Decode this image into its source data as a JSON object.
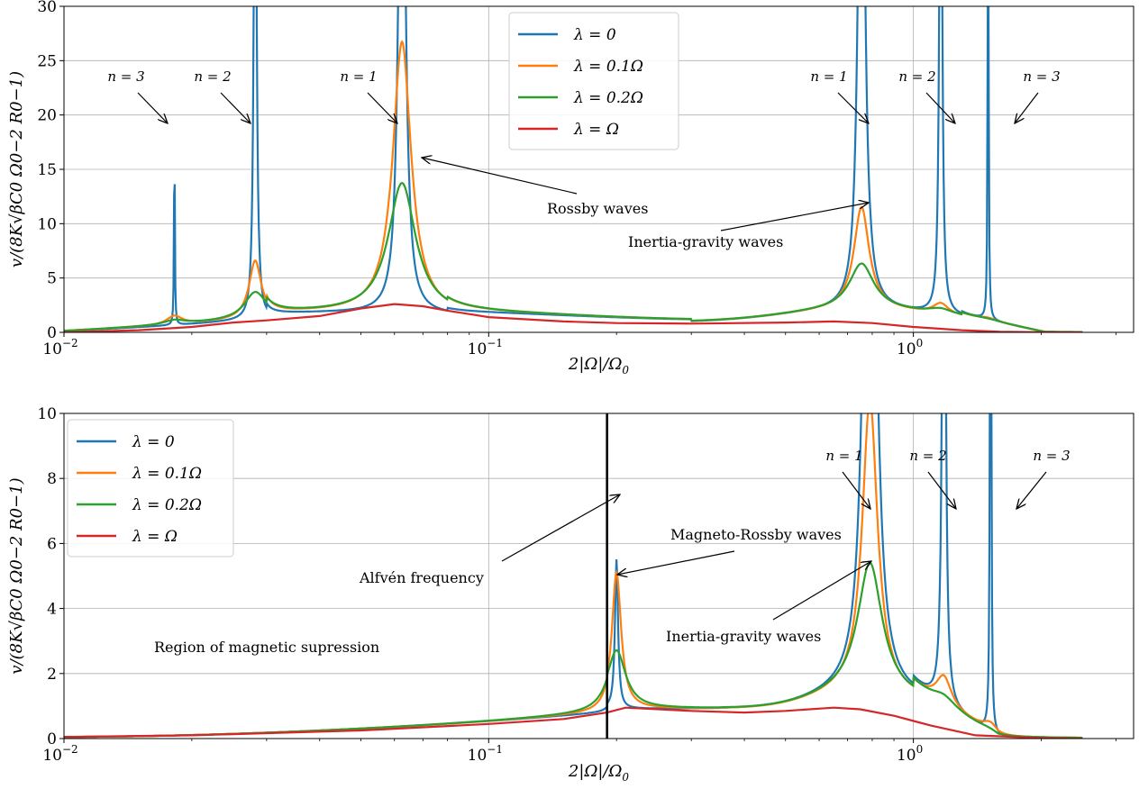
{
  "chart_data": [
    {
      "type": "line",
      "xscale": "log",
      "xlim": [
        0.01,
        3.3
      ],
      "ylim": [
        0,
        30
      ],
      "yticks": [
        0,
        5,
        10,
        15,
        20,
        25,
        30
      ],
      "xticks": [
        0.01,
        0.1,
        1
      ],
      "xtick_labels": [
        "10−2",
        "10−1",
        "100"
      ],
      "xtick_base": "10",
      "xtick_exponents": [
        "−2",
        "−1",
        "0"
      ],
      "xlabel": "2|Ω|/Ω0",
      "ylabel": "v/(8K√βC0 Ω0−2 R0−1)",
      "grid": true,
      "legend_position": "top-center",
      "series": [
        {
          "name": "λ = 0",
          "color": "#1f77b4",
          "peaks": [
            [
              0.0182,
              18.4,
              0.0025
            ],
            [
              0.0282,
              60,
              0.008
            ],
            [
              0.0625,
              60,
              0.02
            ],
            [
              0.755,
              60,
              0.02
            ],
            [
              1.16,
              60,
              0.008
            ],
            [
              1.5,
              60,
              0.0025
            ]
          ],
          "baseline": "default"
        },
        {
          "name": "λ = 0.1Ω",
          "color": "#ff7f0e",
          "peaks": [
            [
              0.0182,
              0.8,
              0.05
            ],
            [
              0.0282,
              5.3,
              0.04
            ],
            [
              0.0625,
              25.0,
              0.06
            ],
            [
              0.755,
              9.4,
              0.05
            ],
            [
              1.16,
              1.0,
              0.05
            ],
            [
              1.5,
              0.2,
              0.05
            ]
          ],
          "baseline": "default"
        },
        {
          "name": "λ = 0.2Ω",
          "color": "#2ca02c",
          "peaks": [
            [
              0.0182,
              0.4,
              0.07
            ],
            [
              0.0282,
              2.4,
              0.07
            ],
            [
              0.0625,
              12.0,
              0.09
            ],
            [
              0.755,
              4.2,
              0.08
            ],
            [
              1.16,
              0.5,
              0.08
            ],
            [
              1.5,
              0.1,
              0.08
            ]
          ],
          "baseline": "default"
        },
        {
          "name": "λ = Ω",
          "color": "#d62728",
          "points": [
            [
              0.01,
              0.0
            ],
            [
              0.015,
              0.2
            ],
            [
              0.02,
              0.5
            ],
            [
              0.025,
              0.9
            ],
            [
              0.03,
              1.1
            ],
            [
              0.04,
              1.5
            ],
            [
              0.05,
              2.2
            ],
            [
              0.06,
              2.6
            ],
            [
              0.07,
              2.4
            ],
            [
              0.08,
              2.0
            ],
            [
              0.1,
              1.4
            ],
            [
              0.15,
              1.0
            ],
            [
              0.2,
              0.85
            ],
            [
              0.3,
              0.8
            ],
            [
              0.5,
              0.9
            ],
            [
              0.65,
              1.0
            ],
            [
              0.8,
              0.85
            ],
            [
              1.0,
              0.5
            ],
            [
              1.3,
              0.2
            ],
            [
              1.6,
              0.05
            ],
            [
              2.0,
              0.02
            ],
            [
              2.5,
              0.0
            ]
          ]
        }
      ],
      "annotations": [
        {
          "id": "n3-left",
          "text": "n = 3"
        },
        {
          "id": "n2-left",
          "text": "n = 2"
        },
        {
          "id": "n1-left",
          "text": "n = 1"
        },
        {
          "id": "n1-right",
          "text": "n = 1"
        },
        {
          "id": "n2-right",
          "text": "n = 2"
        },
        {
          "id": "n3-right",
          "text": "n = 3"
        },
        {
          "id": "rossby",
          "text": "Rossby waves"
        },
        {
          "id": "inertia",
          "text": "Inertia-gravity waves"
        }
      ]
    },
    {
      "type": "line",
      "xscale": "log",
      "xlim": [
        0.01,
        3.3
      ],
      "ylim": [
        0,
        10
      ],
      "yticks": [
        0,
        2,
        4,
        6,
        8,
        10
      ],
      "xticks": [
        0.01,
        0.1,
        1
      ],
      "xtick_labels": [
        "10−2",
        "10−1",
        "100"
      ],
      "xtick_base": "10",
      "xtick_exponents": [
        "−2",
        "−1",
        "0"
      ],
      "xlabel": "2|Ω|/Ω0",
      "ylabel": "v/(8K√βC0 Ω0−2 R0−1)",
      "grid": true,
      "legend_position": "top-left",
      "alfven_frequency": 0.19,
      "series": [
        {
          "name": "λ = 0",
          "color": "#1f77b4",
          "peaks": [
            [
              0.2,
              4.6,
              0.01
            ],
            [
              0.79,
              30,
              0.03
            ],
            [
              1.18,
              30,
              0.008
            ],
            [
              1.52,
              30,
              0.003
            ]
          ],
          "baseline": "magnetic"
        },
        {
          "name": "λ = 0.1Ω",
          "color": "#ff7f0e",
          "peaks": [
            [
              0.2,
              4.2,
              0.03
            ],
            [
              0.79,
              9.0,
              0.05
            ],
            [
              1.18,
              0.9,
              0.05
            ],
            [
              1.52,
              0.3,
              0.05
            ]
          ],
          "baseline": "magnetic"
        },
        {
          "name": "λ = 0.2Ω",
          "color": "#2ca02c",
          "peaks": [
            [
              0.2,
              1.8,
              0.06
            ],
            [
              0.79,
              4.0,
              0.08
            ],
            [
              1.18,
              0.3,
              0.08
            ],
            [
              1.52,
              0.1,
              0.08
            ]
          ],
          "baseline": "magnetic"
        },
        {
          "name": "λ = Ω",
          "color": "#d62728",
          "points": [
            [
              0.01,
              0.05
            ],
            [
              0.02,
              0.1
            ],
            [
              0.05,
              0.25
            ],
            [
              0.1,
              0.45
            ],
            [
              0.15,
              0.6
            ],
            [
              0.19,
              0.8
            ],
            [
              0.21,
              0.95
            ],
            [
              0.3,
              0.85
            ],
            [
              0.4,
              0.8
            ],
            [
              0.5,
              0.85
            ],
            [
              0.65,
              0.95
            ],
            [
              0.75,
              0.9
            ],
            [
              0.9,
              0.7
            ],
            [
              1.1,
              0.4
            ],
            [
              1.4,
              0.1
            ],
            [
              2.0,
              0.02
            ],
            [
              2.5,
              0.0
            ]
          ]
        }
      ],
      "annotations": [
        {
          "id": "n1",
          "text": "n = 1"
        },
        {
          "id": "n2",
          "text": "n = 2"
        },
        {
          "id": "n3",
          "text": "n = 3"
        },
        {
          "id": "magneto-rossby",
          "text": "Magneto-Rossby waves"
        },
        {
          "id": "alfven",
          "text": "Alfvén frequency"
        },
        {
          "id": "inertia",
          "text": "Inertia-gravity waves"
        },
        {
          "id": "suppression",
          "text": "Region of magnetic supression"
        }
      ]
    }
  ]
}
